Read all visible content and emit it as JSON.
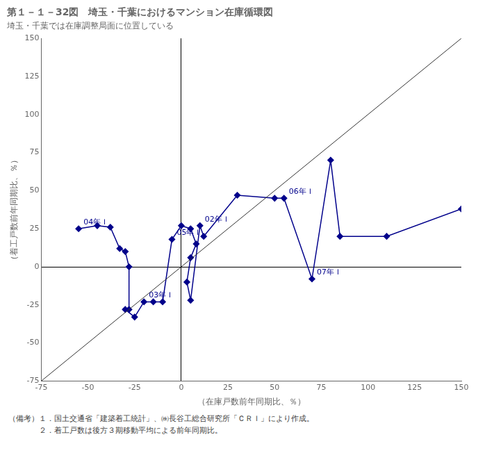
{
  "chart_data": {
    "type": "scatter",
    "title": "第１－１－32図　埼玉・千葉におけるマンション在庫循環図",
    "subtitle": "埼玉・千葉では在庫調整局面に位置している",
    "xlabel": "（在庫戸数前年同期比、％）",
    "ylabel": "（着工戸数前年同期比、％）",
    "footnotes": [
      "（備考）１．国土交通省「建築着工統計」、㈱長谷工総合研究所「ＣＲＩ」により作成。",
      "　　　　２．着工戸数は後方３期移動平均による前年同期比。"
    ],
    "xlim": [
      -75,
      150
    ],
    "ylim": [
      -75,
      150
    ],
    "xticks": [
      -75,
      -50,
      -25,
      0,
      25,
      50,
      75,
      100,
      125,
      150
    ],
    "yticks": [
      -75,
      -50,
      -25,
      0,
      25,
      50,
      75,
      100,
      125,
      150
    ],
    "grid": false,
    "series": [
      {
        "color": "#00008B",
        "marker": "diamond",
        "line_style": "solid",
        "values": [
          [
            -55,
            25
          ],
          [
            -45,
            27
          ],
          [
            -38,
            26
          ],
          [
            -33,
            12
          ],
          [
            -30,
            10
          ],
          [
            -28,
            0
          ],
          [
            -28,
            -28
          ],
          [
            -30,
            -28
          ],
          [
            -25,
            -33
          ],
          [
            -20,
            -23
          ],
          [
            -15,
            -23
          ],
          [
            -10,
            -23
          ],
          [
            -5,
            18
          ],
          [
            0,
            27
          ],
          [
            5,
            25
          ],
          [
            8,
            15
          ],
          [
            5,
            6
          ],
          [
            3,
            -10
          ],
          [
            5,
            -22
          ],
          [
            10,
            27
          ],
          [
            12,
            20
          ],
          [
            30,
            47
          ],
          [
            50,
            45
          ],
          [
            55,
            45
          ],
          [
            70,
            -8
          ],
          [
            80,
            70
          ],
          [
            85,
            20
          ],
          [
            110,
            20
          ],
          [
            150,
            38
          ]
        ]
      },
      {
        "color": "#333333",
        "marker": "none",
        "line_style": "solid",
        "values": [
          [
            -75,
            -75
          ],
          [
            150,
            150
          ]
        ]
      }
    ],
    "annotations": [
      {
        "text": "04年Ｉ",
        "x": -55,
        "y": 25
      },
      {
        "text": "05年Ｉ",
        "x": -5,
        "y": 18
      },
      {
        "text": "02年Ｉ",
        "x": 10,
        "y": 27
      },
      {
        "text": "06年Ｉ",
        "x": 55,
        "y": 45
      },
      {
        "text": "03年Ｉ",
        "x": -20,
        "y": -23
      },
      {
        "text": "07年Ｉ",
        "x": 70,
        "y": -8
      }
    ]
  }
}
